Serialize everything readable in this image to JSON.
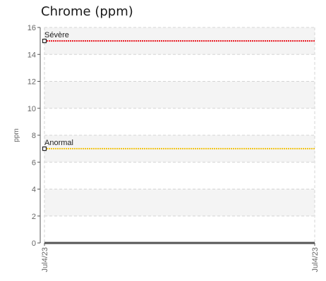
{
  "chart_data": {
    "type": "line",
    "title": "Chrome (ppm)",
    "xlabel": "",
    "ylabel": "ppm",
    "ylim": [
      0,
      16
    ],
    "yticks": [
      0,
      2,
      4,
      6,
      8,
      10,
      12,
      14,
      16
    ],
    "x_tick_labels": [
      "Jul4/23",
      "Jul4/23"
    ],
    "grid": true,
    "thresholds": [
      {
        "label": "Sévère",
        "value": 15,
        "color": "#e8141d"
      },
      {
        "label": "Anormal",
        "value": 7,
        "color": "#f2c417"
      }
    ],
    "series": [
      {
        "values": [
          0,
          0
        ],
        "color": "#555555"
      }
    ]
  }
}
